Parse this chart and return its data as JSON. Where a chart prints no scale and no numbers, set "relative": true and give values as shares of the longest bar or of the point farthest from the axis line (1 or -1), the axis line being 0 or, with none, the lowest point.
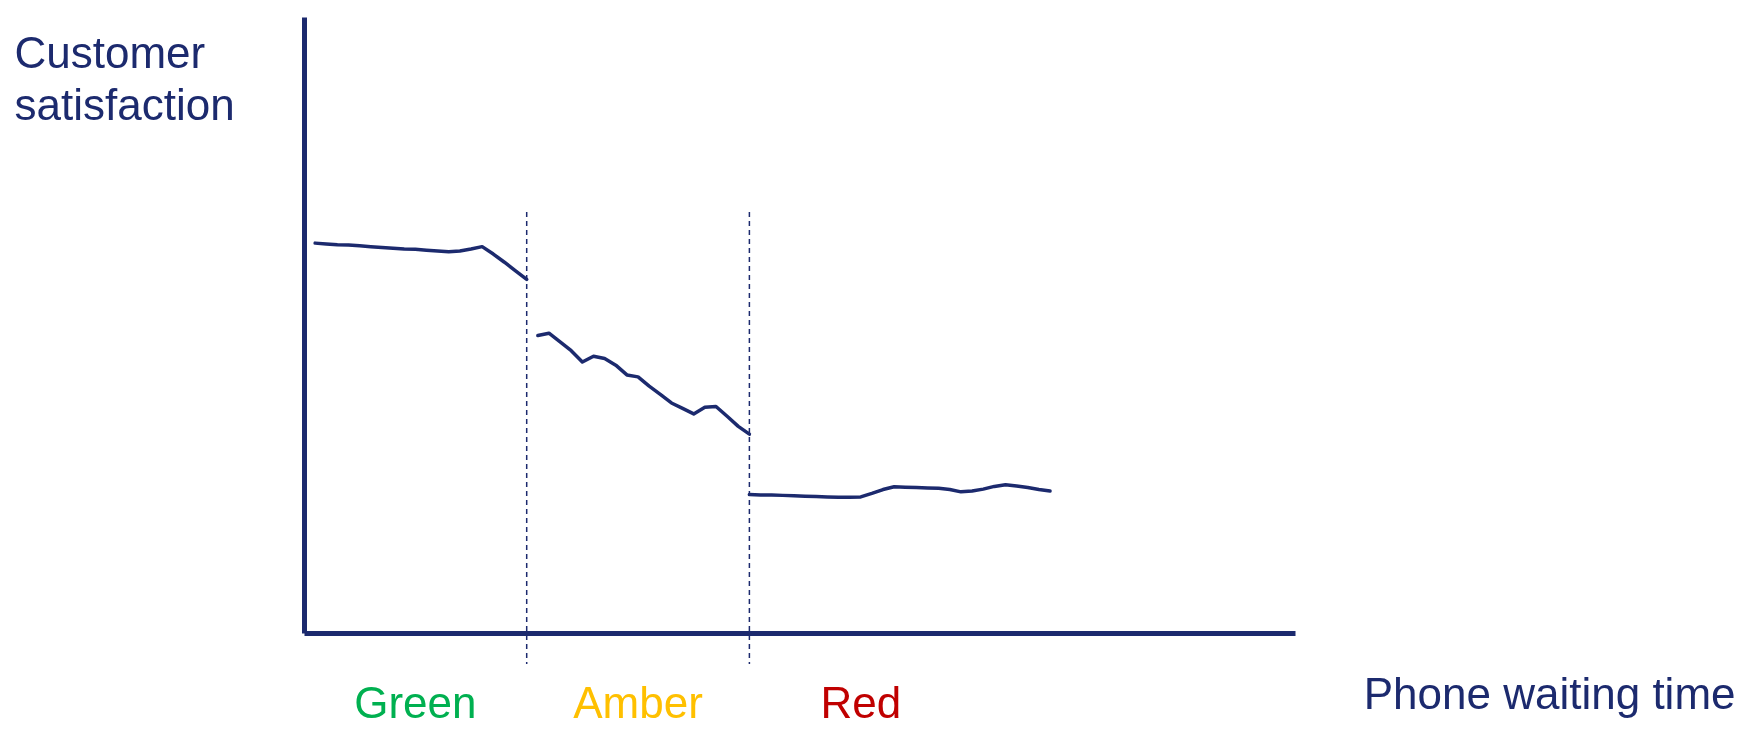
{
  "chart_data": {
    "type": "line",
    "relative": true,
    "xlabel": "Phone waiting time",
    "ylabel": "Customer\nsatisfaction",
    "line_style": "solid",
    "annotations": [
      "Green",
      "Amber",
      "Red"
    ],
    "categories": [
      null,
      null,
      null,
      null,
      null,
      null,
      null,
      null,
      null,
      null,
      null,
      null,
      null,
      null,
      null,
      null,
      null,
      null,
      null,
      null,
      null,
      null,
      null,
      null,
      null,
      null,
      null,
      null,
      null,
      null,
      null,
      null,
      null,
      null,
      null,
      null,
      null,
      null,
      null,
      null,
      null,
      null,
      null,
      null,
      null,
      null,
      null,
      null,
      null,
      null,
      null,
      null,
      null,
      null,
      null,
      null,
      null,
      null,
      null,
      null,
      null,
      null,
      null,
      null,
      null,
      null,
      null,
      null,
      null,
      null,
      null,
      null,
      null,
      null,
      null,
      null,
      null,
      null,
      null,
      null,
      null,
      null,
      null,
      null,
      null,
      null,
      null,
      null,
      null,
      null
    ],
    "series": [
      {
        "color": "#1c2a6e",
        "values": [
          null,
          1.0,
          0.998,
          0.996,
          0.995,
          0.993,
          0.991,
          0.989,
          0.987,
          0.985,
          0.984,
          0.982,
          0.98,
          0.978,
          0.98,
          0.985,
          0.991,
          0.972,
          0.951,
          0.929,
          0.907,
          null,
          null,
          null,
          null,
          null,
          null,
          null,
          null,
          null,
          null,
          null,
          null,
          null,
          null,
          null,
          null,
          null,
          null,
          null,
          null,
          null,
          null,
          null,
          null,
          null,
          null,
          null,
          null,
          null,
          null,
          null,
          null,
          null,
          null,
          null,
          null,
          null,
          null,
          null,
          null,
          null,
          null,
          null,
          null,
          null,
          null,
          null,
          null,
          null,
          null,
          null,
          null,
          null,
          null,
          null,
          null,
          null,
          null,
          null,
          null,
          null,
          null,
          null,
          null,
          null,
          null,
          null,
          null,
          null
        ]
      },
      {
        "color": "#1c2a6e",
        "values": [
          null,
          null,
          null,
          null,
          null,
          null,
          null,
          null,
          null,
          null,
          null,
          null,
          null,
          null,
          null,
          null,
          null,
          null,
          null,
          null,
          null,
          0.763,
          0.769,
          0.747,
          0.724,
          0.695,
          0.71,
          0.704,
          0.687,
          0.662,
          0.657,
          0.633,
          0.612,
          0.59,
          0.576,
          0.562,
          0.579,
          0.581,
          0.556,
          0.53,
          0.51,
          null,
          null,
          null,
          null,
          null,
          null,
          null,
          null,
          null,
          null,
          null,
          null,
          null,
          null,
          null,
          null,
          null,
          null,
          null,
          null,
          null,
          null,
          null,
          null,
          null,
          null,
          null,
          null,
          null,
          null,
          null,
          null,
          null,
          null,
          null,
          null,
          null,
          null,
          null,
          null,
          null,
          null,
          null,
          null,
          null,
          null,
          null,
          null,
          null
        ]
      },
      {
        "color": "#1c2a6e",
        "values": [
          null,
          null,
          null,
          null,
          null,
          null,
          null,
          null,
          null,
          null,
          null,
          null,
          null,
          null,
          null,
          null,
          null,
          null,
          null,
          null,
          null,
          null,
          null,
          null,
          null,
          null,
          null,
          null,
          null,
          null,
          null,
          null,
          null,
          null,
          null,
          null,
          null,
          null,
          null,
          null,
          0.355,
          0.354,
          0.354,
          0.353,
          0.352,
          0.351,
          0.35,
          0.349,
          0.348,
          0.348,
          0.349,
          0.358,
          0.368,
          0.375,
          0.374,
          0.373,
          0.372,
          0.371,
          0.368,
          0.362,
          0.364,
          0.369,
          0.376,
          0.38,
          0.377,
          0.373,
          0.368,
          0.364,
          null,
          null,
          null,
          null,
          null,
          null,
          null,
          null,
          null,
          null,
          null,
          null,
          null,
          null,
          null,
          null,
          null,
          null,
          null,
          null,
          null,
          null
        ]
      }
    ]
  }
}
